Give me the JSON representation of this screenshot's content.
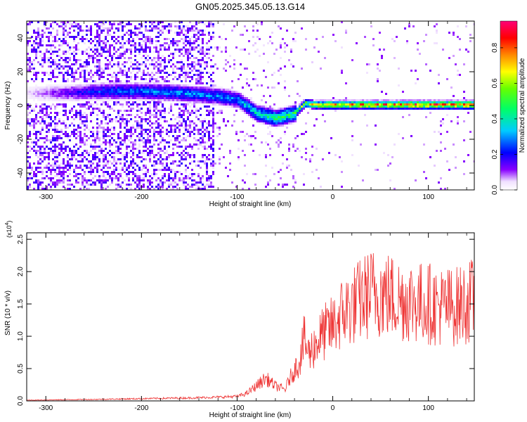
{
  "figure_title": "GN05.2025.345.05.13.G14",
  "colorbar": {
    "label": "Normalized spectral amplitude",
    "ticks": [
      "0.0",
      "0.2",
      "0.4",
      "0.6",
      "0.8"
    ],
    "range": [
      0,
      0.95
    ]
  },
  "chart_data": [
    {
      "type": "heatmap",
      "title": "",
      "xlabel": "Height of straight line (km)",
      "ylabel": "Frequency (Hz)",
      "xlim": [
        -320,
        148
      ],
      "ylim": [
        -50,
        50
      ],
      "x_ticks": [
        "-300",
        "-200",
        "-100",
        "0",
        "100"
      ],
      "y_ticks": [
        "-40",
        "-20",
        "0",
        "20",
        "40"
      ],
      "ridge": {
        "x": [
          -320,
          -280,
          -240,
          -200,
          -160,
          -120,
          -100,
          -80,
          -60,
          -40,
          -30,
          -20,
          0,
          50,
          100,
          148
        ],
        "frequency": [
          8,
          8,
          9,
          9,
          8,
          6,
          4,
          -4,
          -7,
          -4,
          2,
          1,
          1,
          1,
          1,
          1
        ],
        "amplitude": [
          0.05,
          0.15,
          0.25,
          0.3,
          0.3,
          0.3,
          0.3,
          0.4,
          0.45,
          0.5,
          0.55,
          0.65,
          0.75,
          0.8,
          0.8,
          0.8
        ]
      }
    },
    {
      "type": "line",
      "title": "",
      "xlabel": "Height of straight line (km)",
      "ylabel": "SNR (10 * v/v)",
      "y_multiplier": "(x10",
      "y_multiplier_exp": "4",
      "y_multiplier_close": ")",
      "xlim": [
        -320,
        148
      ],
      "ylim": [
        0,
        2.6
      ],
      "x_ticks": [
        "-300",
        "-200",
        "-100",
        "0",
        "100"
      ],
      "y_ticks": [
        "0.0",
        "0.5",
        "1.0",
        "1.5",
        "2.0",
        "2.5"
      ],
      "color": "#ee3333",
      "x": [
        -320,
        -250,
        -200,
        -150,
        -120,
        -100,
        -90,
        -80,
        -70,
        -60,
        -50,
        -45,
        -40,
        -35,
        -30,
        -25,
        -20,
        -10,
        0,
        10,
        20,
        30,
        40,
        50,
        60,
        70,
        80,
        90,
        100,
        110,
        120,
        130,
        140,
        148
      ],
      "y": [
        0.01,
        0.02,
        0.03,
        0.04,
        0.05,
        0.06,
        0.1,
        0.2,
        0.3,
        0.2,
        0.15,
        0.3,
        0.4,
        0.6,
        0.9,
        0.7,
        0.8,
        1.0,
        1.1,
        1.3,
        1.4,
        1.5,
        1.6,
        1.6,
        1.55,
        1.5,
        1.5,
        1.45,
        1.45,
        1.4,
        1.4,
        1.4,
        1.45,
        1.5
      ]
    }
  ]
}
